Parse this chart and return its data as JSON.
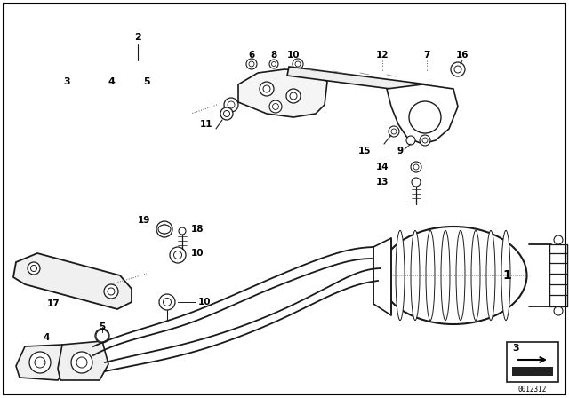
{
  "bg_color": "#ffffff",
  "border_color": "#000000",
  "diagram_id": "0012312",
  "text_color": "#000000",
  "line_color": "#1a1a1a",
  "border_width": 1.5
}
